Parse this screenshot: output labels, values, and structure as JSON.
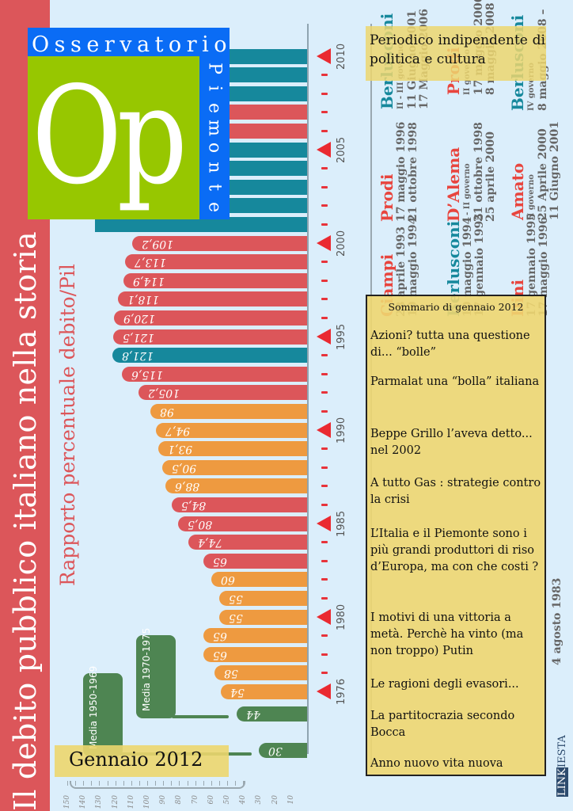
{
  "title": "Il debito pubblico italiano nella storia",
  "subtitle": "Rapporto percentuale debito/Pil",
  "logo": {
    "top_text": "Osservatorio",
    "side_text": "Piemonte",
    "initials": "Op"
  },
  "periodico": "Periodico indipendente di politica e cultura",
  "issue": "Gennaio 2012",
  "brand_credit": {
    "part1": "LINK",
    "part2": "IESTA"
  },
  "colors": {
    "title_band": "#dc565a",
    "bar_red": "#dc565a",
    "bar_orange": "#ee9a40",
    "bar_teal": "#16889c",
    "bar_green": "#4e8552",
    "year_marker": "#ea2a31",
    "logo_blue": "#0a6cf5",
    "logo_green": "#97c700"
  },
  "sommario": {
    "heading": "Sommario di gennaio 2012",
    "items": [
      "Azioni? tutta una questione di... “bolle”",
      "Parmalat una “bolla” italiana",
      "Beppe Grillo l’aveva detto... nel 2002",
      "A tutto Gas : strategie contro la crisi",
      "L’Italia e il Piemonte sono i più grandi produttori di riso d’Europa, ma con che costi ?",
      "I motivi di una vittoria a metà. Perchè ha vinto (ma non troppo) Putin",
      "Le ragioni degli evasori...",
      "La partitocrazia secondo Bocca",
      "Anno nuovo vita nuova"
    ]
  },
  "governments": [
    {
      "name": "Berlusconi",
      "color": "#16889c",
      "note": "II - III governo",
      "from": "11 Giugno 2001",
      "to": "17 Maggio 2006"
    },
    {
      "name": "Prodi",
      "color": "#e8453e",
      "note": "II governo",
      "from": "17 maggio 2006",
      "to": "8 maggio 2008"
    },
    {
      "name": "Berlusconi",
      "color": "#16889c",
      "note": "IV governo",
      "from": "8 maggio 2008 –",
      "to": ""
    },
    {
      "name": "Prodi",
      "color": "#e8453e",
      "note": "",
      "from": "17 maggio 1996",
      "to": "21 ottobre 1998"
    },
    {
      "name": "D’Alema",
      "color": "#e8453e",
      "note": "I - II governo",
      "from": "21 ottobre 1998",
      "to": "25 aprile 2000"
    },
    {
      "name": "Amato",
      "color": "#e8453e",
      "note": "II governo",
      "from": "25 Aprile 2000",
      "to": "11 Giugno 2001"
    },
    {
      "name": "Ciampi",
      "color": "#e8453e",
      "note": "",
      "from": "28 aprile 1993",
      "to": "10 maggio 1994"
    },
    {
      "name": "Berlusconi",
      "color": "#16889c",
      "note": "",
      "from": "10 maggio 1994",
      "to": "17 gennaio 1995"
    },
    {
      "name": "Dini",
      "color": "#e8453e",
      "note": "",
      "from": "17 gennaio 1995",
      "to": "17 maggio 1996"
    }
  ],
  "last_visible_date": "4 agosto 1983",
  "chart_data": {
    "type": "bar",
    "orientation": "horizontal",
    "title": "Il debito pubblico italiano nella storia",
    "subtitle": "Rapporto percentuale debito/Pil",
    "xlabel": "",
    "ylabel": "",
    "xlim": [
      0,
      150
    ],
    "x_ticks": [
      150,
      140,
      130,
      120,
      110,
      100,
      90,
      80,
      70,
      60,
      50,
      40,
      30,
      20,
      10
    ],
    "year_labels": [
      "1976",
      "1980",
      "1985",
      "1990",
      "1995",
      "2000",
      "2005",
      "2010"
    ],
    "averages": [
      {
        "label": "Media 1950-1969",
        "value": 30,
        "display": "30"
      },
      {
        "label": "Media 1970-1975",
        "value": 44,
        "display": "44"
      }
    ],
    "categories": [
      "1976",
      "1977",
      "1978",
      "1979",
      "1980",
      "1981",
      "1982",
      "1983",
      "1984",
      "1985",
      "1986",
      "1987",
      "1988",
      "1989",
      "1990",
      "1991",
      "1992",
      "1993",
      "1994",
      "1995",
      "1996",
      "1997",
      "1998",
      "1999",
      "2000",
      "2001",
      "2002",
      "2003",
      "2004",
      "2005",
      "2006",
      "2007",
      "2008",
      "2009",
      "2010"
    ],
    "values": [
      54,
      58,
      65,
      65,
      55,
      55,
      60,
      65,
      74.4,
      80.5,
      84.5,
      88.6,
      90.5,
      93.1,
      94.7,
      98,
      105.2,
      115.6,
      121.8,
      121.5,
      120.9,
      118.1,
      114.9,
      113.7,
      109.2,
      null,
      null,
      null,
      null,
      null,
      null,
      null,
      null,
      null,
      null
    ],
    "display": [
      "54",
      "58",
      "65",
      "65",
      "55",
      "55",
      "60",
      "65",
      "74,4",
      "80,5",
      "84,5",
      "88,6",
      "90,5",
      "93,1",
      "94,7",
      "98",
      "105,2",
      "115,6",
      "121,8",
      "121,5",
      "120,9",
      "118,1",
      "114,9",
      "113,7",
      "109,2",
      "",
      "",
      "",
      "",
      "",
      "",
      "",
      "",
      "",
      ""
    ],
    "colors": [
      "orange",
      "orange",
      "orange",
      "orange",
      "orange",
      "orange",
      "orange",
      "red",
      "red",
      "red",
      "red",
      "orange",
      "orange",
      "orange",
      "orange",
      "orange",
      "red",
      "red",
      "teal",
      "red",
      "red",
      "red",
      "red",
      "red",
      "red",
      "teal",
      "teal",
      "teal",
      "teal",
      "teal",
      "red",
      "red",
      "teal",
      "teal",
      "teal"
    ]
  }
}
